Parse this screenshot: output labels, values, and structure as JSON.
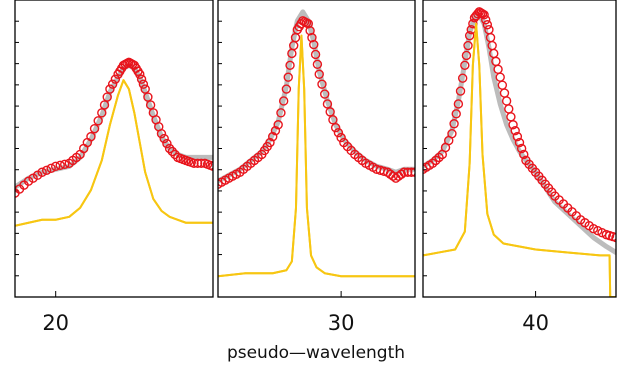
{
  "chart_data": {
    "type": "line",
    "xlabel": "pseudo—wavelength",
    "ylabel": "",
    "colors": {
      "red": "#e8141c",
      "gray": "#bcbcbc",
      "yellow": "#f7c612",
      "frame": "#000000"
    },
    "panels": [
      {
        "xlim": [
          18.5,
          25.8
        ],
        "ylim": [
          0,
          1
        ],
        "xticks": [
          20
        ],
        "xtick_labels": [
          "20"
        ],
        "series": [
          {
            "style": "markers-open-circle",
            "color": "#e8141c",
            "x": [
              18.5,
              19.0,
              19.5,
              20.0,
              20.5,
              20.9,
              21.3,
              21.7,
              22.0,
              22.3,
              22.5,
              22.7,
              22.9,
              23.1,
              23.3,
              23.6,
              23.9,
              24.2,
              24.5,
              24.8,
              25.1,
              25.5,
              25.8
            ],
            "y": [
              0.35,
              0.39,
              0.42,
              0.44,
              0.45,
              0.48,
              0.54,
              0.62,
              0.7,
              0.75,
              0.78,
              0.79,
              0.78,
              0.75,
              0.7,
              0.62,
              0.55,
              0.5,
              0.47,
              0.46,
              0.45,
              0.45,
              0.44
            ]
          },
          {
            "style": "thick-line",
            "color": "#bcbcbc",
            "x": [
              18.5,
              19.0,
              19.5,
              20.0,
              20.5,
              20.9,
              21.3,
              21.7,
              22.0,
              22.3,
              22.5,
              22.7,
              22.9,
              23.1,
              23.3,
              23.6,
              23.9,
              24.2,
              24.5,
              24.8,
              25.1,
              25.5,
              25.8
            ],
            "y": [
              0.37,
              0.4,
              0.42,
              0.43,
              0.44,
              0.47,
              0.53,
              0.61,
              0.69,
              0.74,
              0.77,
              0.78,
              0.77,
              0.74,
              0.69,
              0.61,
              0.54,
              0.5,
              0.48,
              0.47,
              0.47,
              0.47,
              0.47
            ]
          },
          {
            "style": "line",
            "color": "#f7c612",
            "x": [
              18.5,
              19.0,
              19.5,
              20.0,
              20.5,
              20.9,
              21.3,
              21.7,
              22.0,
              22.3,
              22.5,
              22.7,
              22.9,
              23.1,
              23.3,
              23.6,
              23.9,
              24.2,
              24.5,
              24.8,
              25.1,
              25.5,
              25.8
            ],
            "y": [
              0.24,
              0.25,
              0.26,
              0.26,
              0.27,
              0.3,
              0.36,
              0.46,
              0.58,
              0.68,
              0.73,
              0.7,
              0.62,
              0.52,
              0.42,
              0.33,
              0.29,
              0.27,
              0.26,
              0.25,
              0.25,
              0.25,
              0.25
            ]
          }
        ]
      },
      {
        "xlim": [
          25.5,
          32.7
        ],
        "ylim": [
          0,
          1
        ],
        "xticks": [
          30
        ],
        "xtick_labels": [
          "30"
        ],
        "series": [
          {
            "style": "markers-open-circle",
            "color": "#e8141c",
            "x": [
              25.5,
              25.9,
              26.3,
              26.7,
              27.1,
              27.4,
              27.7,
              28.0,
              28.2,
              28.4,
              28.6,
              28.8,
              29.0,
              29.2,
              29.5,
              29.8,
              30.1,
              30.5,
              30.9,
              31.3,
              31.7,
              32.0,
              32.3,
              32.7
            ],
            "y": [
              0.38,
              0.4,
              0.42,
              0.45,
              0.48,
              0.52,
              0.58,
              0.7,
              0.82,
              0.9,
              0.93,
              0.92,
              0.85,
              0.75,
              0.65,
              0.57,
              0.52,
              0.48,
              0.45,
              0.43,
              0.42,
              0.4,
              0.42,
              0.42
            ]
          },
          {
            "style": "thick-line",
            "color": "#bcbcbc",
            "x": [
              25.5,
              25.9,
              26.3,
              26.7,
              27.1,
              27.4,
              27.7,
              28.0,
              28.2,
              28.4,
              28.6,
              28.8,
              29.0,
              29.2,
              29.5,
              29.8,
              30.1,
              30.5,
              30.9,
              31.3,
              31.7,
              32.0,
              32.3,
              32.7
            ],
            "y": [
              0.39,
              0.41,
              0.43,
              0.46,
              0.49,
              0.53,
              0.59,
              0.71,
              0.84,
              0.93,
              0.96,
              0.93,
              0.86,
              0.76,
              0.66,
              0.58,
              0.53,
              0.49,
              0.46,
              0.44,
              0.43,
              0.42,
              0.43,
              0.43
            ]
          },
          {
            "style": "line",
            "color": "#f7c612",
            "x": [
              25.5,
              26.5,
              27.5,
              28.0,
              28.2,
              28.35,
              28.45,
              28.55,
              28.65,
              28.75,
              28.9,
              29.1,
              29.4,
              30.0,
              31.0,
              32.0,
              32.7
            ],
            "y": [
              0.07,
              0.08,
              0.08,
              0.09,
              0.12,
              0.3,
              0.7,
              0.88,
              0.7,
              0.3,
              0.14,
              0.1,
              0.08,
              0.07,
              0.07,
              0.07,
              0.07
            ]
          }
        ]
      },
      {
        "xlim": [
          36.5,
          42.5
        ],
        "ylim": [
          0,
          1
        ],
        "xticks": [
          40
        ],
        "xtick_labels": [
          "40"
        ],
        "series": [
          {
            "style": "markers-open-circle",
            "color": "#e8141c",
            "x": [
              36.5,
              36.8,
              37.1,
              37.4,
              37.6,
              37.8,
              37.95,
              38.1,
              38.25,
              38.4,
              38.55,
              38.7,
              38.9,
              39.1,
              39.3,
              39.5,
              39.7,
              40.0,
              40.3,
              40.6,
              41.0,
              41.4,
              41.8,
              42.2,
              42.5
            ],
            "y": [
              0.43,
              0.45,
              0.48,
              0.55,
              0.65,
              0.78,
              0.88,
              0.94,
              0.96,
              0.95,
              0.9,
              0.82,
              0.74,
              0.66,
              0.58,
              0.52,
              0.46,
              0.42,
              0.38,
              0.34,
              0.3,
              0.26,
              0.23,
              0.21,
              0.2
            ]
          },
          {
            "style": "thick-line",
            "color": "#bcbcbc",
            "x": [
              36.5,
              36.8,
              37.1,
              37.4,
              37.6,
              37.8,
              37.95,
              38.1,
              38.25,
              38.4,
              38.55,
              38.7,
              38.9,
              39.1,
              39.3,
              39.5,
              39.7,
              40.0,
              40.3,
              40.6,
              41.0,
              41.4,
              41.8,
              42.2,
              42.5
            ],
            "y": [
              0.44,
              0.46,
              0.49,
              0.56,
              0.66,
              0.79,
              0.89,
              0.94,
              0.95,
              0.92,
              0.84,
              0.74,
              0.65,
              0.58,
              0.53,
              0.49,
              0.46,
              0.42,
              0.37,
              0.32,
              0.28,
              0.24,
              0.2,
              0.17,
              0.15
            ]
          },
          {
            "style": "line",
            "color": "#f7c612",
            "x": [
              36.5,
              37.0,
              37.5,
              37.8,
              37.95,
              38.05,
              38.15,
              38.25,
              38.35,
              38.5,
              38.7,
              39.0,
              39.5,
              40.0,
              41.0,
              42.0,
              42.3,
              42.32,
              42.5
            ],
            "y": [
              0.14,
              0.15,
              0.16,
              0.22,
              0.45,
              0.78,
              0.92,
              0.78,
              0.48,
              0.28,
              0.21,
              0.18,
              0.17,
              0.16,
              0.15,
              0.14,
              0.14,
              0.0,
              0.0
            ]
          }
        ]
      }
    ]
  }
}
